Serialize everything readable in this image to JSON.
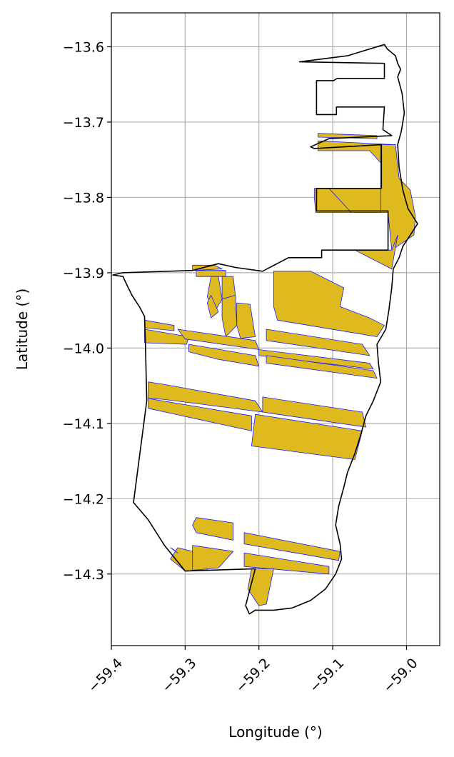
{
  "chart_data": {
    "type": "map",
    "xlabel": "Longitude (°)",
    "ylabel": "Latitude (°)",
    "xlim": [
      -59.4,
      -58.955
    ],
    "ylim": [
      -14.395,
      -13.555
    ],
    "xticks": [
      -59.4,
      -59.3,
      -59.2,
      -59.1,
      -59.0
    ],
    "xtick_labels": [
      "−59.4",
      "−59.3",
      "−59.2",
      "−59.1",
      "−59.0"
    ],
    "yticks": [
      -13.6,
      -13.7,
      -13.8,
      -13.9,
      -14.0,
      -14.1,
      -14.2,
      -14.3
    ],
    "ytick_labels": [
      "−13.6",
      "−13.7",
      "−13.8",
      "−13.9",
      "−14.0",
      "−14.1",
      "−14.2",
      "−14.3"
    ],
    "grid": true,
    "colors": {
      "boundary": "#000000",
      "parcel_fill": "#dfba1e",
      "parcel_edge": "#1a1aff",
      "grid": "#b0b0b0"
    },
    "boundary": {
      "name": "study-area",
      "coords": [
        [
          -59.145,
          -13.62
        ],
        [
          -59.08,
          -13.612
        ],
        [
          -59.03,
          -13.597
        ],
        [
          -59.026,
          -13.603
        ],
        [
          -59.015,
          -13.612
        ],
        [
          -59.012,
          -13.622
        ],
        [
          -59.008,
          -13.63
        ],
        [
          -59.012,
          -13.64
        ],
        [
          -59.006,
          -13.662
        ],
        [
          -59.003,
          -13.688
        ],
        [
          -59.007,
          -13.712
        ],
        [
          -59.012,
          -13.73
        ],
        [
          -59.01,
          -13.76
        ],
        [
          -59.005,
          -13.79
        ],
        [
          -58.998,
          -13.815
        ],
        [
          -58.985,
          -13.835
        ],
        [
          -58.995,
          -13.85
        ],
        [
          -59.005,
          -13.865
        ],
        [
          -59.01,
          -13.88
        ],
        [
          -59.018,
          -13.895
        ],
        [
          -59.02,
          -13.92
        ],
        [
          -59.024,
          -13.95
        ],
        [
          -59.028,
          -13.975
        ],
        [
          -59.04,
          -13.995
        ],
        [
          -59.038,
          -14.02
        ],
        [
          -59.035,
          -14.045
        ],
        [
          -59.045,
          -14.07
        ],
        [
          -59.055,
          -14.09
        ],
        [
          -59.062,
          -14.115
        ],
        [
          -59.07,
          -14.14
        ],
        [
          -59.08,
          -14.165
        ],
        [
          -59.085,
          -14.185
        ],
        [
          -59.092,
          -14.21
        ],
        [
          -59.096,
          -14.235
        ],
        [
          -59.09,
          -14.26
        ],
        [
          -59.088,
          -14.28
        ],
        [
          -59.096,
          -14.3
        ],
        [
          -59.11,
          -14.32
        ],
        [
          -59.13,
          -14.335
        ],
        [
          -59.155,
          -14.345
        ],
        [
          -59.18,
          -14.348
        ],
        [
          -59.205,
          -14.348
        ],
        [
          -59.213,
          -14.353
        ],
        [
          -59.218,
          -14.342
        ],
        [
          -59.205,
          -14.293
        ],
        [
          -59.3,
          -14.296
        ],
        [
          -59.328,
          -14.262
        ],
        [
          -59.35,
          -14.228
        ],
        [
          -59.37,
          -14.205
        ],
        [
          -59.352,
          -14.07
        ],
        [
          -59.354,
          -13.99
        ],
        [
          -59.355,
          -13.958
        ],
        [
          -59.362,
          -13.945
        ],
        [
          -59.372,
          -13.93
        ],
        [
          -59.382,
          -13.91
        ],
        [
          -59.384,
          -13.905
        ],
        [
          -59.398,
          -13.903
        ],
        [
          -59.385,
          -13.9
        ],
        [
          -59.29,
          -13.897
        ],
        [
          -59.255,
          -13.888
        ],
        [
          -59.232,
          -13.893
        ],
        [
          -59.195,
          -13.898
        ],
        [
          -59.16,
          -13.88
        ],
        [
          -59.115,
          -13.88
        ],
        [
          -59.115,
          -13.87
        ],
        [
          -59.025,
          -13.87
        ],
        [
          -59.025,
          -13.818
        ],
        [
          -59.122,
          -13.818
        ],
        [
          -59.122,
          -13.788
        ],
        [
          -59.034,
          -13.788
        ],
        [
          -59.034,
          -13.73
        ],
        [
          -59.125,
          -13.735
        ],
        [
          -59.13,
          -13.733
        ],
        [
          -59.105,
          -13.722
        ],
        [
          -59.02,
          -13.718
        ],
        [
          -59.032,
          -13.71
        ],
        [
          -59.03,
          -13.68
        ],
        [
          -59.095,
          -13.68
        ],
        [
          -59.095,
          -13.69
        ],
        [
          -59.122,
          -13.69
        ],
        [
          -59.122,
          -13.645
        ],
        [
          -59.099,
          -13.645
        ],
        [
          -59.094,
          -13.642
        ],
        [
          -59.03,
          -13.642
        ],
        [
          -59.03,
          -13.622
        ],
        [
          -59.145,
          -13.62
        ]
      ]
    },
    "parcels": [
      [
        [
          -59.12,
          -13.725
        ],
        [
          -59.015,
          -13.73
        ],
        [
          -59.015,
          -13.758
        ],
        [
          -59.02,
          -13.77
        ],
        [
          -59.05,
          -13.738
        ],
        [
          -59.12,
          -13.738
        ]
      ],
      [
        [
          -59.12,
          -13.715
        ],
        [
          -59.04,
          -13.718
        ],
        [
          -59.04,
          -13.722
        ],
        [
          -59.12,
          -13.72
        ]
      ],
      [
        [
          -59.125,
          -13.788
        ],
        [
          -59.035,
          -13.788
        ],
        [
          -59.035,
          -13.73
        ],
        [
          -59.015,
          -13.73
        ],
        [
          -59.01,
          -13.775
        ],
        [
          -58.995,
          -13.79
        ],
        [
          -58.988,
          -13.825
        ],
        [
          -58.99,
          -13.85
        ],
        [
          -59.02,
          -13.87
        ],
        [
          -59.025,
          -13.82
        ],
        [
          -59.123,
          -13.82
        ],
        [
          -59.125,
          -13.8
        ]
      ],
      [
        [
          -59.105,
          -13.788
        ],
        [
          -59.035,
          -13.788
        ],
        [
          -59.035,
          -13.82
        ],
        [
          -59.075,
          -13.82
        ]
      ],
      [
        [
          -59.07,
          -13.87
        ],
        [
          -59.02,
          -13.87
        ],
        [
          -59.012,
          -13.85
        ],
        [
          -59.02,
          -13.895
        ]
      ],
      [
        [
          -59.29,
          -13.89
        ],
        [
          -59.26,
          -13.89
        ],
        [
          -59.25,
          -13.895
        ],
        [
          -59.29,
          -13.897
        ]
      ],
      [
        [
          -59.285,
          -13.897
        ],
        [
          -59.245,
          -13.897
        ],
        [
          -59.245,
          -13.905
        ],
        [
          -59.285,
          -13.905
        ]
      ],
      [
        [
          -59.265,
          -13.905
        ],
        [
          -59.255,
          -13.905
        ],
        [
          -59.25,
          -13.935
        ],
        [
          -59.26,
          -13.952
        ],
        [
          -59.27,
          -13.932
        ]
      ],
      [
        [
          -59.25,
          -13.905
        ],
        [
          -59.235,
          -13.905
        ],
        [
          -59.232,
          -13.93
        ],
        [
          -59.25,
          -13.935
        ]
      ],
      [
        [
          -59.25,
          -13.935
        ],
        [
          -59.232,
          -13.93
        ],
        [
          -59.23,
          -13.97
        ],
        [
          -59.245,
          -13.985
        ],
        [
          -59.25,
          -13.96
        ]
      ],
      [
        [
          -59.23,
          -13.94
        ],
        [
          -59.212,
          -13.942
        ],
        [
          -59.205,
          -13.985
        ],
        [
          -59.225,
          -13.987
        ],
        [
          -59.23,
          -13.97
        ]
      ],
      [
        [
          -59.265,
          -13.93
        ],
        [
          -59.255,
          -13.952
        ],
        [
          -59.265,
          -13.96
        ],
        [
          -59.27,
          -13.94
        ]
      ],
      [
        [
          -59.18,
          -13.898
        ],
        [
          -59.13,
          -13.898
        ],
        [
          -59.085,
          -13.92
        ],
        [
          -59.09,
          -13.945
        ],
        [
          -59.05,
          -13.96
        ],
        [
          -59.03,
          -13.97
        ],
        [
          -59.04,
          -13.985
        ],
        [
          -59.175,
          -13.963
        ],
        [
          -59.18,
          -13.945
        ]
      ],
      [
        [
          -59.355,
          -13.963
        ],
        [
          -59.315,
          -13.97
        ],
        [
          -59.315,
          -13.977
        ],
        [
          -59.355,
          -13.973
        ]
      ],
      [
        [
          -59.355,
          -13.975
        ],
        [
          -59.295,
          -13.985
        ],
        [
          -59.298,
          -13.995
        ],
        [
          -59.355,
          -13.993
        ]
      ],
      [
        [
          -59.31,
          -13.975
        ],
        [
          -59.205,
          -13.99
        ],
        [
          -59.2,
          -14.002
        ],
        [
          -59.3,
          -13.988
        ]
      ],
      [
        [
          -59.19,
          -13.975
        ],
        [
          -59.06,
          -13.995
        ],
        [
          -59.05,
          -14.01
        ],
        [
          -59.19,
          -13.99
        ]
      ],
      [
        [
          -59.2,
          -14.002
        ],
        [
          -59.05,
          -14.02
        ],
        [
          -59.045,
          -14.028
        ],
        [
          -59.2,
          -14.01
        ]
      ],
      [
        [
          -59.19,
          -14.01
        ],
        [
          -59.045,
          -14.03
        ],
        [
          -59.04,
          -14.04
        ],
        [
          -59.19,
          -14.02
        ]
      ],
      [
        [
          -59.295,
          -13.995
        ],
        [
          -59.205,
          -14.01
        ],
        [
          -59.2,
          -14.024
        ],
        [
          -59.255,
          -14.015
        ],
        [
          -59.295,
          -14.005
        ]
      ],
      [
        [
          -59.35,
          -14.045
        ],
        [
          -59.33,
          -14.048
        ],
        [
          -59.205,
          -14.07
        ],
        [
          -59.195,
          -14.085
        ],
        [
          -59.33,
          -14.068
        ],
        [
          -59.35,
          -14.067
        ]
      ],
      [
        [
          -59.35,
          -14.067
        ],
        [
          -59.21,
          -14.09
        ],
        [
          -59.21,
          -14.11
        ],
        [
          -59.35,
          -14.08
        ]
      ],
      [
        [
          -59.195,
          -14.065
        ],
        [
          -59.06,
          -14.085
        ],
        [
          -59.055,
          -14.105
        ],
        [
          -59.195,
          -14.085
        ]
      ],
      [
        [
          -59.205,
          -14.088
        ],
        [
          -59.06,
          -14.11
        ],
        [
          -59.07,
          -14.148
        ],
        [
          -59.21,
          -14.13
        ]
      ],
      [
        [
          -59.285,
          -14.225
        ],
        [
          -59.235,
          -14.232
        ],
        [
          -59.235,
          -14.255
        ],
        [
          -59.285,
          -14.245
        ],
        [
          -59.29,
          -14.235
        ]
      ],
      [
        [
          -59.22,
          -14.245
        ],
        [
          -59.09,
          -14.27
        ],
        [
          -59.092,
          -14.282
        ],
        [
          -59.22,
          -14.26
        ]
      ],
      [
        [
          -59.31,
          -14.265
        ],
        [
          -59.27,
          -14.275
        ],
        [
          -59.27,
          -14.295
        ],
        [
          -59.3,
          -14.296
        ],
        [
          -59.32,
          -14.28
        ]
      ],
      [
        [
          -59.29,
          -14.262
        ],
        [
          -59.235,
          -14.27
        ],
        [
          -59.255,
          -14.292
        ],
        [
          -59.29,
          -14.295
        ]
      ],
      [
        [
          -59.22,
          -14.272
        ],
        [
          -59.105,
          -14.29
        ],
        [
          -59.105,
          -14.3
        ],
        [
          -59.22,
          -14.29
        ]
      ],
      [
        [
          -59.21,
          -14.293
        ],
        [
          -59.18,
          -14.293
        ],
        [
          -59.19,
          -14.34
        ],
        [
          -59.2,
          -14.342
        ],
        [
          -59.215,
          -14.32
        ]
      ],
      [
        [
          -59.32,
          -14.265
        ],
        [
          -59.315,
          -14.268
        ],
        [
          -59.31,
          -14.272
        ]
      ]
    ]
  }
}
